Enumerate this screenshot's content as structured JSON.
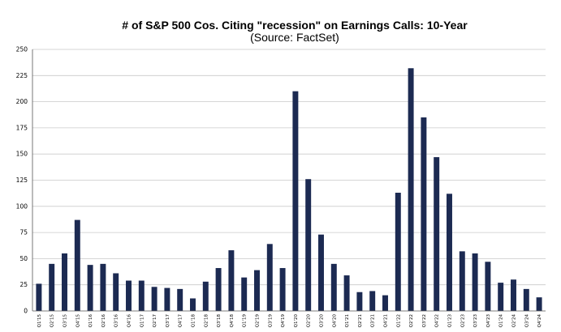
{
  "chart_data": {
    "type": "bar",
    "title": "# of S&P 500 Cos. Citing \"recession\" on Earnings Calls: 10-Year",
    "subtitle": "(Source: FactSet)",
    "xlabel": "",
    "ylabel": "",
    "ylim": [
      0,
      250
    ],
    "yticks": [
      "0",
      "25",
      "50",
      "75",
      "100",
      "125",
      "150",
      "175",
      "200",
      "225",
      "250"
    ],
    "grid": true,
    "legend": "none",
    "bar_color": "#1c2a52",
    "categories": [
      "Q1'15",
      "Q2'15",
      "Q3'15",
      "Q4'15",
      "Q1'16",
      "Q2'16",
      "Q3'16",
      "Q4'16",
      "Q1'17",
      "Q2'17",
      "Q3'17",
      "Q4'17",
      "Q1'18",
      "Q2'18",
      "Q3'18",
      "Q4'18",
      "Q1'19",
      "Q2'19",
      "Q3'19",
      "Q4'19",
      "Q1'20",
      "Q2'20",
      "Q3'20",
      "Q4'20",
      "Q1'21",
      "Q2'21",
      "Q3'21",
      "Q4'21",
      "Q1'22",
      "Q2'22",
      "Q3'22",
      "Q4'22",
      "Q1'23",
      "Q2'23",
      "Q3'23",
      "Q4'23",
      "Q1'24",
      "Q2'24",
      "Q3'24",
      "Q4'24"
    ],
    "values": [
      26,
      45,
      55,
      87,
      44,
      45,
      36,
      29,
      29,
      23,
      22,
      21,
      12,
      28,
      41,
      58,
      32,
      39,
      64,
      41,
      210,
      126,
      73,
      45,
      34,
      18,
      19,
      15,
      113,
      232,
      185,
      147,
      112,
      57,
      55,
      47,
      27,
      30,
      21,
      13
    ]
  }
}
